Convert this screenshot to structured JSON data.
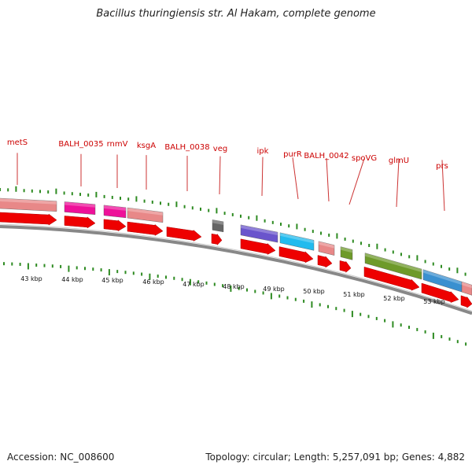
{
  "title": "Bacillus thuringiensis str. Al Hakam, complete genome",
  "footer": {
    "accession": "Accession: NC_008600",
    "summary": "Topology: circular; Length: 5,257,091 bp; Genes: 4,882"
  },
  "colors": {
    "cds": "#ee0000",
    "cds_dark": "#aa0000",
    "backbone": "#888888",
    "tick": "#2e8b22",
    "label": "#cc0000",
    "leader": "#cc3333"
  },
  "gene_labels": [
    "metS",
    "BALH_0035",
    "rnmV",
    "ksgA",
    "BALH_0038",
    "veg",
    "ipk",
    "purR",
    "BALH_0042",
    "spoVG",
    "glmU",
    "prs"
  ],
  "kbp_labels": [
    "43 kbp",
    "44 kbp",
    "45 kbp",
    "46 kbp",
    "47 kbp",
    "48 kbp",
    "49 kbp",
    "50 kbp",
    "51 kbp",
    "52 kbp",
    "53 kbp"
  ],
  "feature_colors": [
    "#e88888",
    "#ee1199",
    "#ee1199",
    "#e88888",
    "#666666",
    "#6a55cc",
    "#22bbee",
    "#e88888",
    "#6e9a2a",
    "#6e9a2a",
    "#3a90d0",
    "#e88888"
  ]
}
